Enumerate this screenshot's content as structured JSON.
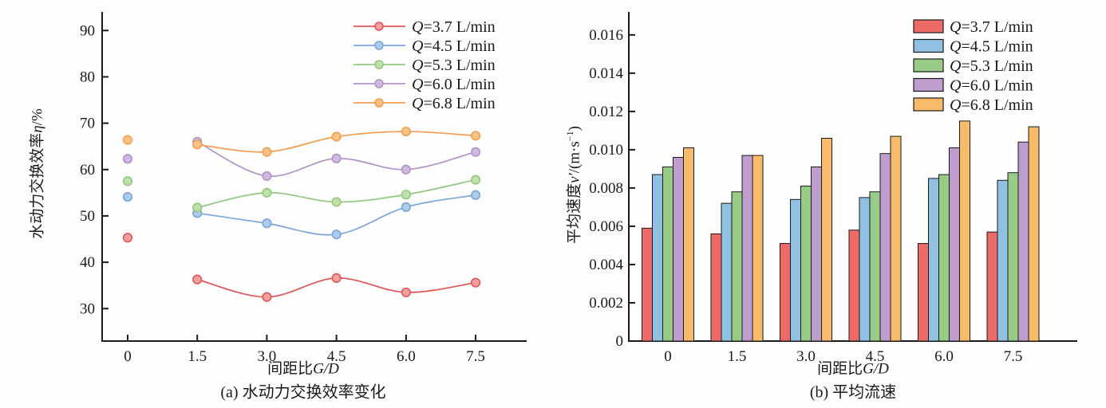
{
  "figure": {
    "background": "#fefefe",
    "axis_color": "#1a1a1a"
  },
  "chart_data": [
    {
      "id": "a",
      "type": "line",
      "caption": "(a) 水动力交换效率变化",
      "xlabel": {
        "text": "间距比",
        "italic": "G/D"
      },
      "ylabel": {
        "text": "水动力交换效率",
        "italic": "η",
        "after": "/%"
      },
      "x": [
        0,
        1.5,
        3.0,
        4.5,
        6.0,
        7.5
      ],
      "xtick_labels": [
        "0",
        "1.5",
        "3.0",
        "4.5",
        "6.0",
        "7.5"
      ],
      "ytick_values": [
        30,
        40,
        50,
        60,
        70,
        80,
        90
      ],
      "ytick_labels": [
        "30",
        "40",
        "50",
        "60",
        "70",
        "80",
        "90"
      ],
      "xlim": [
        -0.55,
        8.6
      ],
      "ylim": [
        23,
        94
      ],
      "line_start_index": 1,
      "legend_position": "top-right",
      "grid": false,
      "series": [
        {
          "name": "Q=3.7 L/min",
          "line_color": "#e05558",
          "marker_fill": "#f2a09c",
          "values": [
            45.3,
            36.3,
            32.5,
            36.6,
            33.5,
            35.6
          ]
        },
        {
          "name": "Q=4.5 L/min",
          "line_color": "#7aa6d8",
          "marker_fill": "#aecbe9",
          "values": [
            54.1,
            50.6,
            48.4,
            46.0,
            51.9,
            54.5
          ]
        },
        {
          "name": "Q=5.3 L/min",
          "line_color": "#92c77e",
          "marker_fill": "#bfe0ab",
          "values": [
            57.5,
            51.8,
            55.0,
            53.0,
            54.6,
            57.8
          ]
        },
        {
          "name": "Q=6.0 L/min",
          "line_color": "#b192c7",
          "marker_fill": "#d0b8de",
          "values": [
            62.3,
            66.0,
            58.6,
            62.4,
            60.0,
            63.8
          ]
        },
        {
          "name": "Q=6.8 L/min",
          "line_color": "#f59d4e",
          "marker_fill": "#f9c287",
          "values": [
            66.4,
            65.4,
            63.8,
            67.1,
            68.2,
            67.3
          ]
        }
      ]
    },
    {
      "id": "b",
      "type": "bar",
      "caption": "(b) 平均流速",
      "xlabel": {
        "text": "间距比",
        "italic": "G/D"
      },
      "ylabel": {
        "text": "平均速度",
        "italic": "v′",
        "after": "/(m·s",
        "sup": "−1",
        "after2": ")"
      },
      "categories": [
        "0",
        "1.5",
        "3.0",
        "4.5",
        "6.0",
        "7.5"
      ],
      "ytick_values": [
        0,
        0.002,
        0.004,
        0.006,
        0.008,
        0.01,
        0.012,
        0.014,
        0.016
      ],
      "ytick_labels": [
        "0",
        "0.002",
        "0.004",
        "0.006",
        "0.008",
        "0.010",
        "0.012",
        "0.014",
        "0.016"
      ],
      "ylim": [
        0,
        0.0172
      ],
      "bar_border": "#1a1a1a",
      "legend_position": "top-right",
      "grid": false,
      "series": [
        {
          "name": "Q=3.7 L/min",
          "fill": "#ed6a66",
          "values": [
            0.0059,
            0.0056,
            0.0051,
            0.0058,
            0.0051,
            0.0057
          ]
        },
        {
          "name": "Q=4.5 L/min",
          "fill": "#90c1e2",
          "values": [
            0.0087,
            0.0072,
            0.0074,
            0.0075,
            0.0085,
            0.0084
          ]
        },
        {
          "name": "Q=5.3 L/min",
          "fill": "#98cb86",
          "values": [
            0.0091,
            0.0078,
            0.0081,
            0.0078,
            0.0087,
            0.0088
          ]
        },
        {
          "name": "Q=6.0 L/min",
          "fill": "#c09dcf",
          "values": [
            0.0096,
            0.0097,
            0.0091,
            0.0098,
            0.0101,
            0.0104
          ]
        },
        {
          "name": "Q=6.8 L/min",
          "fill": "#f8bb69",
          "values": [
            0.0101,
            0.0097,
            0.0106,
            0.0107,
            0.0115,
            0.0112
          ]
        }
      ]
    }
  ]
}
